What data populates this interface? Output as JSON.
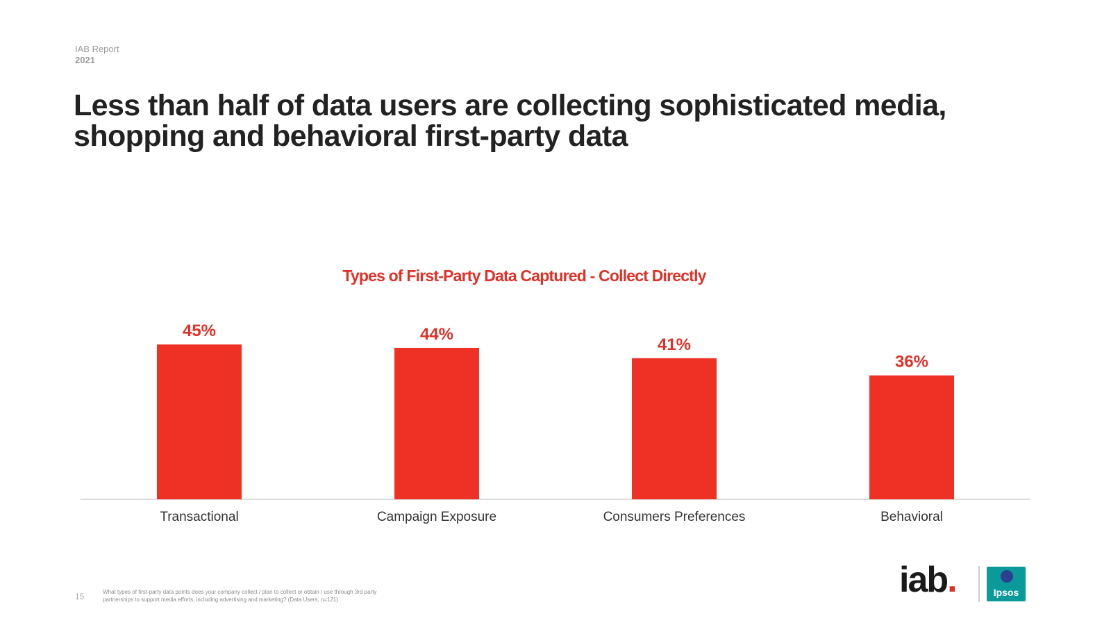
{
  "header": {
    "report_label": "IAB Report",
    "report_year": "2021",
    "headline": "Less than half of data users are collecting sophisticated media, shopping and behavioral first-party data"
  },
  "chart_data": {
    "type": "bar",
    "title": "Types of First-Party Data Captured - Collect Directly",
    "categories": [
      "Transactional",
      "Campaign Exposure",
      "Consumers Preferences",
      "Behavioral"
    ],
    "values": [
      45,
      44,
      41,
      36
    ],
    "data_labels": [
      "45%",
      "44%",
      "41%",
      "36%"
    ],
    "ylim": [
      0,
      45
    ],
    "xlabel": "",
    "ylabel": "",
    "grid": false,
    "legend": "none",
    "bar_color": "#ee3124",
    "label_color": "#e03127"
  },
  "footer": {
    "page_number": "15",
    "note": "What types of first-party data points does your company collect / plan to collect or obtain / use through 3rd party partnerships to support media efforts, including advertising and marketing? (Data Users, n=121)"
  },
  "logos": {
    "iab_text": "iab",
    "iab_dot": ".",
    "ipsos_text": "Ipsos",
    "ipsos_color": "#0b9a9a",
    "ipsos_accent": "#2a3f8f"
  }
}
